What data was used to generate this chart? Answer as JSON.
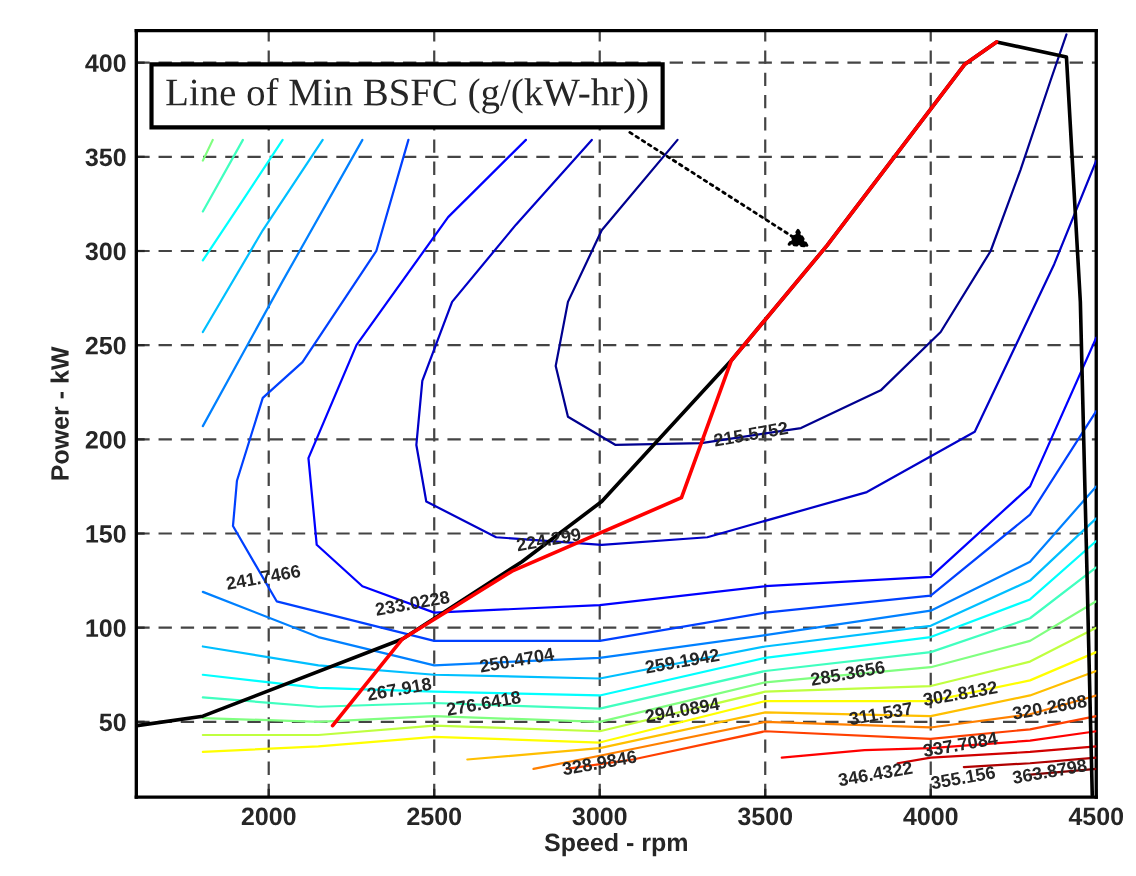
{
  "chart_data": {
    "type": "line",
    "xlabel": "Speed - rpm",
    "ylabel": "Power - kW",
    "xlim": [
      1600,
      4500
    ],
    "ylim": [
      10,
      417
    ],
    "xticks": [
      2000,
      2500,
      3000,
      3500,
      4000,
      4500
    ],
    "yticks": [
      50,
      100,
      150,
      200,
      250,
      300,
      350,
      400
    ],
    "grid": true,
    "legend": false,
    "line_style": "solid",
    "annotations": [
      {
        "text": "Line of Min BSFC (g/(kW-hr))",
        "x": 3650,
        "y": 300
      }
    ],
    "series": [
      {
        "name": "215.5752",
        "color": "#00008f",
        "x": [
          3235,
          3006,
          2904,
          2867,
          2904,
          3048,
          3307,
          3608,
          3849,
          4030,
          4181,
          4271,
          4361,
          4410
        ],
        "values": [
          359,
          311,
          273,
          239,
          212,
          197,
          198,
          206,
          226,
          257,
          300,
          343,
          390,
          415
        ]
      },
      {
        "name": "224.299",
        "color": "#0000c8",
        "x": [
          2976,
          2747,
          2554,
          2464,
          2446,
          2476,
          2687,
          3006,
          3325,
          3807,
          4133,
          4373,
          4500
        ],
        "values": [
          359,
          314,
          273,
          231,
          197,
          167,
          148,
          144,
          148,
          172,
          204,
          293,
          348
        ]
      },
      {
        "name": "233.0228",
        "color": "#0000ff",
        "x": [
          2777,
          2542,
          2265,
          2120,
          2145,
          2283,
          2500,
          3000,
          3500,
          4000,
          4300,
          4500
        ],
        "values": [
          359,
          318,
          250,
          190,
          144,
          122,
          108,
          112,
          122,
          127,
          175,
          254
        ]
      },
      {
        "name": "241.7466",
        "color": "#0040ff",
        "x": [
          2422,
          2325,
          2102,
          1982,
          1904,
          1892,
          2024,
          2500,
          3000,
          3500,
          4000,
          4300,
          4500
        ],
        "values": [
          359,
          300,
          241,
          222,
          178,
          154,
          114,
          93,
          93,
          108,
          117,
          160,
          215
        ]
      },
      {
        "name": "250.4704",
        "color": "#0080ff",
        "x": [
          1801,
          2042,
          2283,
          null,
          1801,
          2150,
          2500,
          3000,
          3500,
          4000,
          4300,
          4500
        ],
        "values": [
          207,
          284,
          359,
          null,
          119,
          95,
          80,
          84,
          96,
          109,
          135,
          175
        ]
      },
      {
        "name": "259.1942",
        "color": "#00bfff",
        "x": [
          1801,
          1982,
          2163,
          null,
          1801,
          2150,
          2500,
          3000,
          3500,
          4000,
          4300,
          4500
        ],
        "values": [
          257,
          311,
          359,
          null,
          90,
          80,
          75,
          73,
          90,
          101,
          125,
          158
        ]
      },
      {
        "name": "267.918",
        "color": "#00ffff",
        "x": [
          1801,
          1922,
          2042,
          null,
          1801,
          2150,
          2500,
          3000,
          3500,
          4000,
          4300,
          4500
        ],
        "values": [
          295,
          327,
          359,
          null,
          75,
          68,
          66,
          64,
          84,
          95,
          115,
          146
        ]
      },
      {
        "name": "276.6418",
        "color": "#40ffbf",
        "x": [
          1801,
          1922,
          null,
          1801,
          2150,
          2500,
          3000,
          3500,
          4000,
          4300,
          4500
        ],
        "values": [
          321,
          359,
          null,
          63,
          58,
          60,
          57,
          77,
          87,
          105,
          132
        ]
      },
      {
        "name": "285.3656",
        "color": "#80ff80",
        "x": [
          1801,
          1831,
          null,
          1801,
          2150,
          2500,
          3000,
          3500,
          4000,
          4300,
          4500
        ],
        "values": [
          348,
          359,
          null,
          52,
          50,
          53,
          50,
          71,
          79,
          93,
          114
        ]
      },
      {
        "name": "294.0894",
        "color": "#bfff40",
        "x": [
          1801,
          2150,
          2500,
          3000,
          3500,
          4000,
          4300,
          4500
        ],
        "values": [
          43,
          43,
          48,
          45,
          66,
          69,
          82,
          100
        ]
      },
      {
        "name": "302.8132",
        "color": "#ffff00",
        "x": [
          1801,
          2150,
          2500,
          3000,
          3500,
          4000,
          4300,
          4500
        ],
        "values": [
          34,
          37,
          42,
          39,
          61,
          61,
          72,
          87
        ]
      },
      {
        "name": "311.537",
        "color": "#ffbf00",
        "x": [
          2600,
          3000,
          3500,
          4000,
          4300,
          4500
        ],
        "values": [
          30,
          36,
          55,
          53,
          64,
          77
        ]
      },
      {
        "name": "320.2608",
        "color": "#ff8000",
        "x": [
          2800,
          3000,
          3500,
          4000,
          4300,
          4500
        ],
        "values": [
          25,
          32,
          50,
          47,
          54,
          64
        ]
      },
      {
        "name": "328.9846",
        "color": "#ff4000",
        "x": [
          2900,
          3100,
          3500,
          4000,
          4300,
          4500
        ],
        "values": [
          25,
          30,
          45,
          41,
          46,
          53
        ]
      },
      {
        "name": "337.7084",
        "color": "#ff0000",
        "x": [
          3550,
          3800,
          4000,
          4300,
          4500
        ],
        "values": [
          31,
          35,
          36,
          40,
          45
        ]
      },
      {
        "name": "346.4322",
        "color": "#d00000",
        "x": [
          3900,
          4000,
          4300,
          4500
        ],
        "values": [
          28,
          31,
          34,
          37
        ]
      },
      {
        "name": "355.156",
        "color": "#b00000",
        "x": [
          4100,
          4300,
          4500
        ],
        "values": [
          26,
          28,
          31
        ]
      },
      {
        "name": "363.8798",
        "color": "#800000",
        "x": [
          4300,
          4500
        ],
        "values": [
          22,
          25
        ]
      },
      {
        "color": "#ff0000",
        "x": [
          2193,
          2404,
          2735,
          3247,
          3398,
          3687,
          4102,
          4199
        ],
        "values": [
          48,
          94,
          130,
          169,
          242,
          303,
          399,
          411
        ]
      },
      {
        "color": "#000000",
        "x": [
          1602,
          1801,
          2404,
          2765,
          3006,
          3398,
          3687,
          4102,
          4199,
          4410,
          4452,
          4470,
          4488
        ],
        "values": [
          48,
          53,
          94,
          135,
          167,
          242,
          303,
          399,
          411,
          403,
          273,
          144,
          11
        ]
      }
    ]
  }
}
